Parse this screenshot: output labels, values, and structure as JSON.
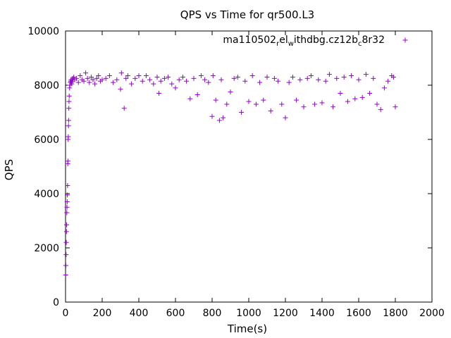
{
  "chart_data": {
    "type": "scatter",
    "title": "QPS vs Time for qr500.L3",
    "xlabel": "Time(s)",
    "ylabel": "QPS",
    "xlim": [
      0,
      2000
    ],
    "ylim": [
      0,
      10000
    ],
    "xticks": [
      0,
      200,
      400,
      600,
      800,
      1000,
      1200,
      1400,
      1600,
      1800,
      2000
    ],
    "yticks": [
      0,
      2000,
      4000,
      6000,
      8000,
      10000
    ],
    "xtick_labels": [
      "0",
      "200",
      "400",
      "600",
      "800",
      "1000",
      "1200",
      "1400",
      "1600",
      "1800",
      "2000"
    ],
    "ytick_labels": [
      "0",
      "2000",
      "4000",
      "6000",
      "8000",
      "10000"
    ],
    "grid": false,
    "legend_position": "top-right",
    "series": [
      {
        "name_base": "ma110502",
        "name_sub1": "r",
        "name_mid1": "el",
        "name_sub2": "w",
        "name_mid2": "ithdbg.cz12b",
        "name_sub3": "c",
        "name_end": "8r32",
        "color": "#9400d3",
        "marker": "plus",
        "x": [
          1,
          2,
          3,
          4,
          5,
          6,
          7,
          8,
          9,
          10,
          11,
          12,
          13,
          14,
          15,
          16,
          17,
          18,
          19,
          20,
          22,
          24,
          26,
          28,
          30,
          32,
          34,
          36,
          38,
          40,
          45,
          50,
          60,
          70,
          80,
          90,
          100,
          110,
          120,
          130,
          140,
          150,
          160,
          170,
          180,
          190,
          200,
          220,
          240,
          260,
          280,
          300,
          305,
          320,
          330,
          340,
          360,
          380,
          400,
          420,
          440,
          460,
          480,
          500,
          510,
          520,
          540,
          560,
          580,
          600,
          620,
          640,
          660,
          680,
          700,
          720,
          740,
          760,
          780,
          800,
          805,
          820,
          840,
          850,
          860,
          880,
          900,
          920,
          940,
          960,
          980,
          1000,
          1020,
          1040,
          1060,
          1080,
          1100,
          1120,
          1140,
          1160,
          1180,
          1200,
          1220,
          1240,
          1260,
          1280,
          1300,
          1320,
          1340,
          1360,
          1380,
          1400,
          1420,
          1440,
          1460,
          1480,
          1500,
          1520,
          1540,
          1560,
          1580,
          1600,
          1620,
          1640,
          1660,
          1680,
          1700,
          1720,
          1740,
          1760,
          1780,
          1790,
          1800
        ],
        "y": [
          1000,
          1350,
          1750,
          2200,
          2600,
          2850,
          3300,
          3500,
          3700,
          3950,
          4300,
          5100,
          5200,
          6000,
          6100,
          6500,
          6700,
          7150,
          7400,
          7600,
          7900,
          8000,
          8100,
          8150,
          8200,
          8100,
          8050,
          8150,
          8200,
          8250,
          8300,
          8200,
          8250,
          8100,
          8350,
          8200,
          8150,
          8450,
          8250,
          8100,
          8300,
          8200,
          8050,
          8250,
          8350,
          8150,
          8200,
          8250,
          8350,
          8100,
          8200,
          7850,
          8450,
          7150,
          8250,
          8350,
          8050,
          8250,
          8350,
          8150,
          8350,
          8200,
          8050,
          8300,
          7700,
          8150,
          8250,
          8300,
          8050,
          7900,
          8200,
          8300,
          8150,
          7500,
          8250,
          7650,
          8350,
          8200,
          8100,
          6850,
          8350,
          7450,
          6700,
          8200,
          6800,
          7300,
          7750,
          8250,
          8300,
          7000,
          8150,
          7400,
          8350,
          7300,
          8100,
          7450,
          8300,
          7050,
          8250,
          8150,
          7300,
          6800,
          8100,
          8300,
          7450,
          8200,
          7200,
          8250,
          8350,
          7300,
          8200,
          7350,
          8150,
          8400,
          7200,
          8250,
          7700,
          8300,
          7400,
          8350,
          7500,
          8200,
          7550,
          8400,
          7700,
          8250,
          7300,
          7100,
          7900,
          8150,
          8350,
          8300,
          7200
        ]
      }
    ]
  }
}
